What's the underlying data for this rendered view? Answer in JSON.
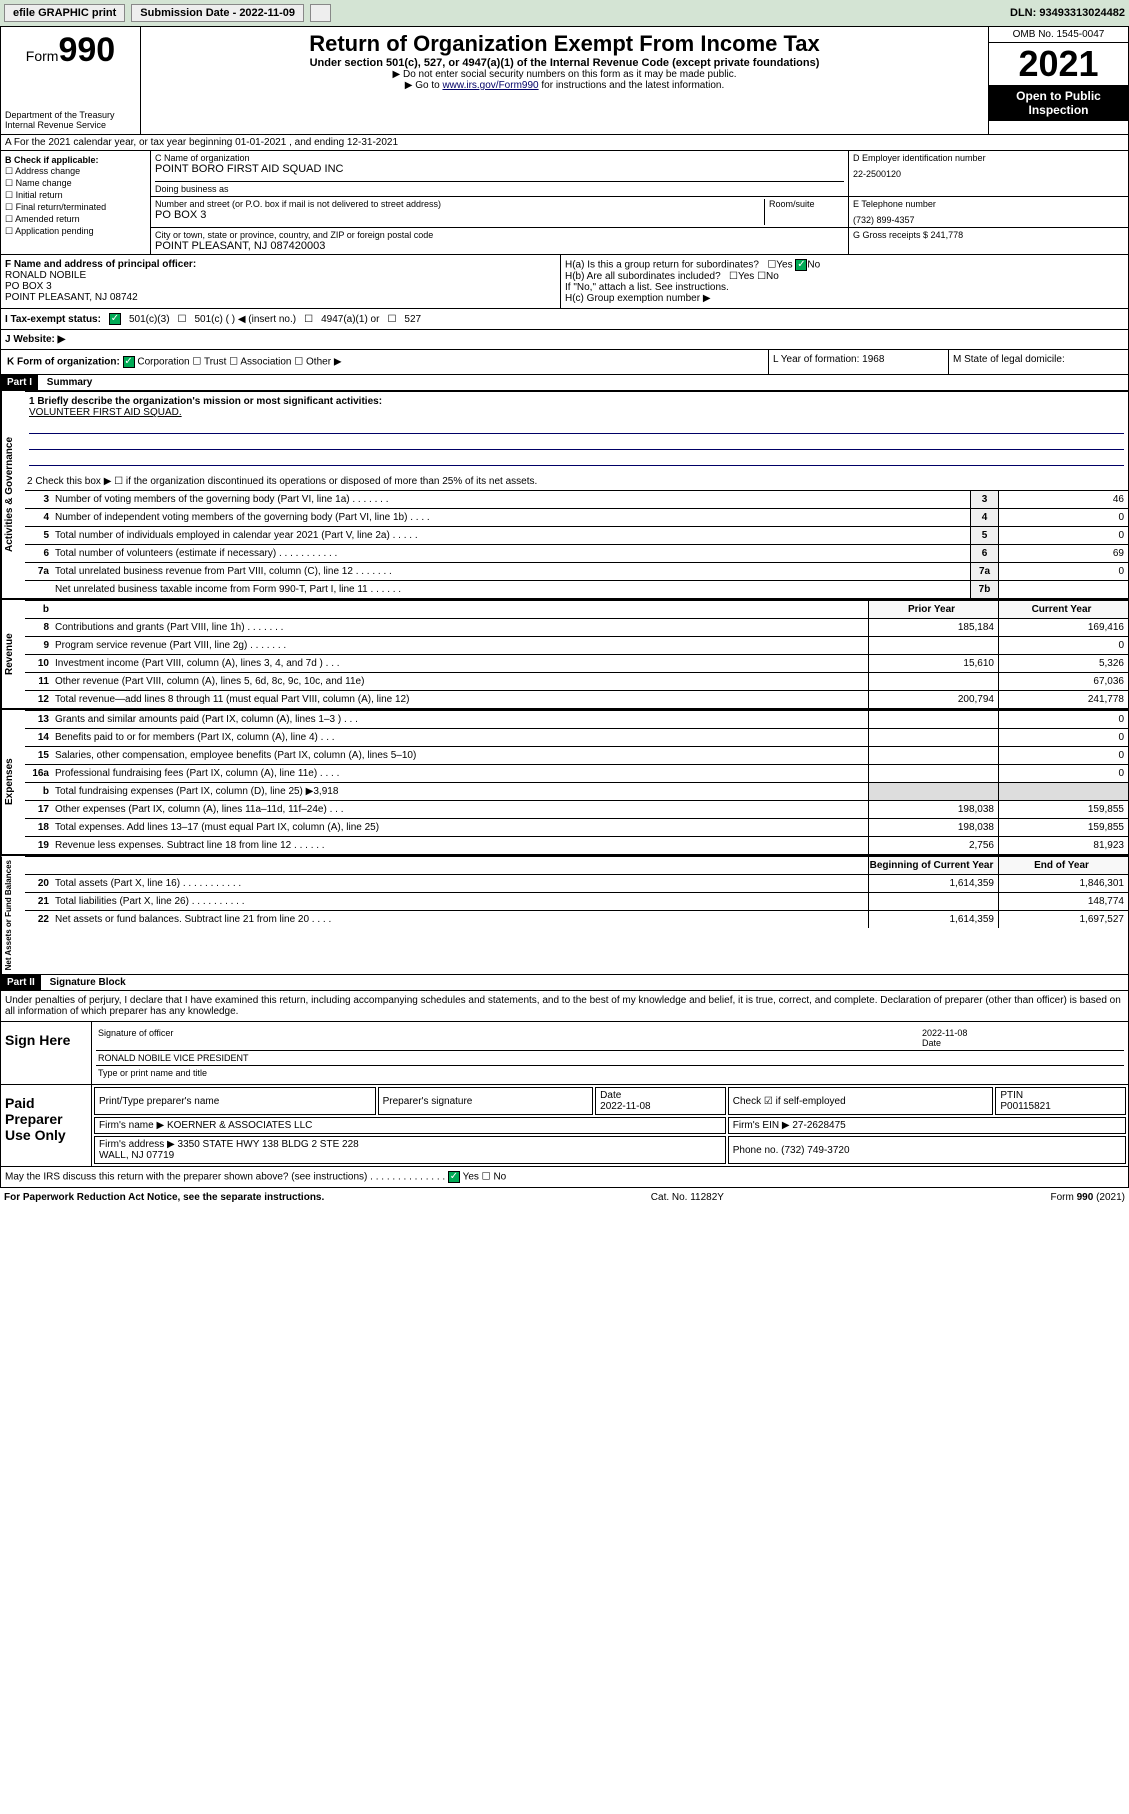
{
  "topbar": {
    "efile": "efile GRAPHIC print",
    "subdate_label": "Submission Date - 2022-11-09",
    "dln": "DLN: 93493313024482"
  },
  "header": {
    "form_word": "Form",
    "form_num": "990",
    "title": "Return of Organization Exempt From Income Tax",
    "subtitle": "Under section 501(c), 527, or 4947(a)(1) of the Internal Revenue Code (except private foundations)",
    "note1": "▶ Do not enter social security numbers on this form as it may be made public.",
    "note2_pre": "▶ Go to ",
    "note2_link": "www.irs.gov/Form990",
    "note2_post": " for instructions and the latest information.",
    "dept": "Department of the Treasury\nInternal Revenue Service",
    "omb": "OMB No. 1545-0047",
    "year": "2021",
    "inspect": "Open to Public Inspection"
  },
  "rowA": "A For the 2021 calendar year, or tax year beginning 01-01-2021   , and ending 12-31-2021",
  "colB": {
    "label": "B Check if applicable:",
    "items": [
      "Address change",
      "Name change",
      "Initial return",
      "Final return/terminated",
      "Amended return",
      "Application pending"
    ]
  },
  "colC": {
    "name_label": "C Name of organization",
    "name": "POINT BORO FIRST AID SQUAD INC",
    "dba_label": "Doing business as",
    "dba": "",
    "addr_label": "Number and street (or P.O. box if mail is not delivered to street address)",
    "room_label": "Room/suite",
    "addr": "PO BOX 3",
    "city_label": "City or town, state or province, country, and ZIP or foreign postal code",
    "city": "POINT PLEASANT, NJ  087420003"
  },
  "colD": {
    "ein_label": "D Employer identification number",
    "ein": "22-2500120",
    "phone_label": "E Telephone number",
    "phone": "(732) 899-4357",
    "gross_label": "G Gross receipts $",
    "gross": "241,778"
  },
  "colF": {
    "label": "F Name and address of principal officer:",
    "name": "RONALD NOBILE",
    "addr1": "PO BOX 3",
    "addr2": "POINT PLEASANT, NJ  08742"
  },
  "colH": {
    "ha": "H(a)  Is this a group return for subordinates?",
    "hb": "H(b)  Are all subordinates included?",
    "hb_note": "If \"No,\" attach a list. See instructions.",
    "hc": "H(c)  Group exemption number ▶",
    "yes": "Yes",
    "no": "No"
  },
  "rowI": {
    "label": "I   Tax-exempt status:",
    "c3": "501(c)(3)",
    "c_other": "501(c) (   ) ◀ (insert no.)",
    "a1": "4947(a)(1) or",
    "s527": "527"
  },
  "rowJ": "J   Website: ▶",
  "rowK": "K Form of organization:",
  "rowK_opts": [
    "Corporation",
    "Trust",
    "Association",
    "Other ▶"
  ],
  "colL": {
    "label": "L Year of formation:",
    "val": "1968"
  },
  "colM": {
    "label": "M State of legal domicile:",
    "val": ""
  },
  "partI": {
    "head": "Part I",
    "title": "Summary",
    "line1_label": "1   Briefly describe the organization's mission or most significant activities:",
    "mission": "VOLUNTEER FIRST AID SQUAD.",
    "line2": "2   Check this box ▶ ☐  if the organization discontinued its operations or disposed of more than 25% of its net assets.",
    "vtab_gov": "Activities & Governance",
    "vtab_rev": "Revenue",
    "vtab_exp": "Expenses",
    "vtab_net": "Net Assets or Fund Balances",
    "col_prior": "Prior Year",
    "col_curr": "Current Year",
    "col_beg": "Beginning of Current Year",
    "col_end": "End of Year"
  },
  "gov_lines": [
    {
      "n": "3",
      "d": "Number of voting members of the governing body (Part VI, line 1a)   .   .   .   .   .   .   .",
      "box": "3",
      "v": "46"
    },
    {
      "n": "4",
      "d": "Number of independent voting members of the governing body (Part VI, line 1b)   .   .   .   .",
      "box": "4",
      "v": "0"
    },
    {
      "n": "5",
      "d": "Total number of individuals employed in calendar year 2021 (Part V, line 2a)   .   .   .   .   .",
      "box": "5",
      "v": "0"
    },
    {
      "n": "6",
      "d": "Total number of volunteers (estimate if necessary)   .   .   .   .   .   .   .   .   .   .   .",
      "box": "6",
      "v": "69"
    },
    {
      "n": "7a",
      "d": "Total unrelated business revenue from Part VIII, column (C), line 12   .   .   .   .   .   .   .",
      "box": "7a",
      "v": "0"
    },
    {
      "n": "",
      "d": "Net unrelated business taxable income from Form 990-T, Part I, line 11   .   .   .   .   .   .",
      "box": "7b",
      "v": ""
    }
  ],
  "rev_lines": [
    {
      "n": "8",
      "d": "Contributions and grants (Part VIII, line 1h)   .   .   .   .   .   .   .",
      "p": "185,184",
      "c": "169,416"
    },
    {
      "n": "9",
      "d": "Program service revenue (Part VIII, line 2g)   .   .   .   .   .   .   .",
      "p": "",
      "c": "0"
    },
    {
      "n": "10",
      "d": "Investment income (Part VIII, column (A), lines 3, 4, and 7d )   .   .   .",
      "p": "15,610",
      "c": "5,326"
    },
    {
      "n": "11",
      "d": "Other revenue (Part VIII, column (A), lines 5, 6d, 8c, 9c, 10c, and 11e)",
      "p": "",
      "c": "67,036"
    },
    {
      "n": "12",
      "d": "Total revenue—add lines 8 through 11 (must equal Part VIII, column (A), line 12)",
      "p": "200,794",
      "c": "241,778"
    }
  ],
  "exp_lines": [
    {
      "n": "13",
      "d": "Grants and similar amounts paid (Part IX, column (A), lines 1–3 )   .   .   .",
      "p": "",
      "c": "0"
    },
    {
      "n": "14",
      "d": "Benefits paid to or for members (Part IX, column (A), line 4)   .   .   .",
      "p": "",
      "c": "0"
    },
    {
      "n": "15",
      "d": "Salaries, other compensation, employee benefits (Part IX, column (A), lines 5–10)",
      "p": "",
      "c": "0"
    },
    {
      "n": "16a",
      "d": "Professional fundraising fees (Part IX, column (A), line 11e)   .   .   .   .",
      "p": "",
      "c": "0"
    },
    {
      "n": "b",
      "d": "Total fundraising expenses (Part IX, column (D), line 25) ▶3,918",
      "p": "shade",
      "c": "shade"
    },
    {
      "n": "17",
      "d": "Other expenses (Part IX, column (A), lines 11a–11d, 11f–24e)   .   .   .",
      "p": "198,038",
      "c": "159,855"
    },
    {
      "n": "18",
      "d": "Total expenses. Add lines 13–17 (must equal Part IX, column (A), line 25)",
      "p": "198,038",
      "c": "159,855"
    },
    {
      "n": "19",
      "d": "Revenue less expenses. Subtract line 18 from line 12   .   .   .   .   .   .",
      "p": "2,756",
      "c": "81,923"
    }
  ],
  "net_lines": [
    {
      "n": "20",
      "d": "Total assets (Part X, line 16)   .   .   .   .   .   .   .   .   .   .   .",
      "p": "1,614,359",
      "c": "1,846,301"
    },
    {
      "n": "21",
      "d": "Total liabilities (Part X, line 26)   .   .   .   .   .   .   .   .   .   .",
      "p": "",
      "c": "148,774"
    },
    {
      "n": "22",
      "d": "Net assets or fund balances. Subtract line 21 from line 20   .   .   .   .",
      "p": "1,614,359",
      "c": "1,697,527"
    }
  ],
  "partII": {
    "head": "Part II",
    "title": "Signature Block",
    "decl": "Under penalties of perjury, I declare that I have examined this return, including accompanying schedules and statements, and to the best of my knowledge and belief, it is true, correct, and complete. Declaration of preparer (other than officer) is based on all information of which preparer has any knowledge.",
    "sign_here": "Sign Here",
    "sig_officer": "Signature of officer",
    "sig_date": "2022-11-08",
    "date_label": "Date",
    "officer_name": "RONALD NOBILE  VICE PRESIDENT",
    "name_label": "Type or print name and title",
    "paid": "Paid Preparer Use Only",
    "prep_name_label": "Print/Type preparer's name",
    "prep_sig_label": "Preparer's signature",
    "prep_date": "2022-11-08",
    "check_self": "Check ☑ if self-employed",
    "ptin_label": "PTIN",
    "ptin": "P00115821",
    "firm_name_label": "Firm's name      ▶",
    "firm_name": "KOERNER & ASSOCIATES LLC",
    "firm_ein_label": "Firm's EIN ▶",
    "firm_ein": "27-2628475",
    "firm_addr_label": "Firm's address ▶",
    "firm_addr": "3350 STATE HWY 138 BLDG 2 STE 228\nWALL, NJ  07719",
    "firm_phone_label": "Phone no.",
    "firm_phone": "(732) 749-3720",
    "discuss": "May the IRS discuss this return with the preparer shown above? (see instructions)   .   .   .   .   .   .   .   .   .   .   .   .   .   .",
    "discuss_yes": "Yes",
    "discuss_no": "No"
  },
  "footer": {
    "left": "For Paperwork Reduction Act Notice, see the separate instructions.",
    "mid": "Cat. No. 11282Y",
    "right": "Form 990 (2021)"
  },
  "colors": {
    "topbar_bg": "#d4e4d4",
    "link": "#003366",
    "shade": "#dddddd",
    "check_green": "#00aa55"
  }
}
